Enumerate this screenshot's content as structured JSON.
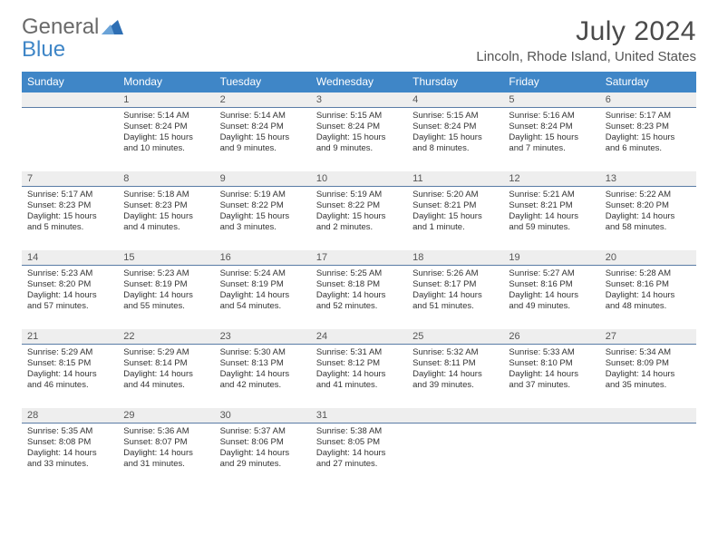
{
  "brand": {
    "part1": "General",
    "part2": "Blue"
  },
  "title": "July 2024",
  "location": "Lincoln, Rhode Island, United States",
  "colors": {
    "header_bg": "#3f86c7",
    "numrow_bg": "#eeeeee",
    "numrow_border": "#5a7ca6",
    "text": "#333333"
  },
  "dayHeaders": [
    "Sunday",
    "Monday",
    "Tuesday",
    "Wednesday",
    "Thursday",
    "Friday",
    "Saturday"
  ],
  "weeks": [
    {
      "nums": [
        "",
        "1",
        "2",
        "3",
        "4",
        "5",
        "6"
      ],
      "cells": [
        {
          "lines": []
        },
        {
          "lines": [
            "Sunrise: 5:14 AM",
            "Sunset: 8:24 PM",
            "Daylight: 15 hours",
            "and 10 minutes."
          ]
        },
        {
          "lines": [
            "Sunrise: 5:14 AM",
            "Sunset: 8:24 PM",
            "Daylight: 15 hours",
            "and 9 minutes."
          ]
        },
        {
          "lines": [
            "Sunrise: 5:15 AM",
            "Sunset: 8:24 PM",
            "Daylight: 15 hours",
            "and 9 minutes."
          ]
        },
        {
          "lines": [
            "Sunrise: 5:15 AM",
            "Sunset: 8:24 PM",
            "Daylight: 15 hours",
            "and 8 minutes."
          ]
        },
        {
          "lines": [
            "Sunrise: 5:16 AM",
            "Sunset: 8:24 PM",
            "Daylight: 15 hours",
            "and 7 minutes."
          ]
        },
        {
          "lines": [
            "Sunrise: 5:17 AM",
            "Sunset: 8:23 PM",
            "Daylight: 15 hours",
            "and 6 minutes."
          ]
        }
      ]
    },
    {
      "nums": [
        "7",
        "8",
        "9",
        "10",
        "11",
        "12",
        "13"
      ],
      "cells": [
        {
          "lines": [
            "Sunrise: 5:17 AM",
            "Sunset: 8:23 PM",
            "Daylight: 15 hours",
            "and 5 minutes."
          ]
        },
        {
          "lines": [
            "Sunrise: 5:18 AM",
            "Sunset: 8:23 PM",
            "Daylight: 15 hours",
            "and 4 minutes."
          ]
        },
        {
          "lines": [
            "Sunrise: 5:19 AM",
            "Sunset: 8:22 PM",
            "Daylight: 15 hours",
            "and 3 minutes."
          ]
        },
        {
          "lines": [
            "Sunrise: 5:19 AM",
            "Sunset: 8:22 PM",
            "Daylight: 15 hours",
            "and 2 minutes."
          ]
        },
        {
          "lines": [
            "Sunrise: 5:20 AM",
            "Sunset: 8:21 PM",
            "Daylight: 15 hours",
            "and 1 minute."
          ]
        },
        {
          "lines": [
            "Sunrise: 5:21 AM",
            "Sunset: 8:21 PM",
            "Daylight: 14 hours",
            "and 59 minutes."
          ]
        },
        {
          "lines": [
            "Sunrise: 5:22 AM",
            "Sunset: 8:20 PM",
            "Daylight: 14 hours",
            "and 58 minutes."
          ]
        }
      ]
    },
    {
      "nums": [
        "14",
        "15",
        "16",
        "17",
        "18",
        "19",
        "20"
      ],
      "cells": [
        {
          "lines": [
            "Sunrise: 5:23 AM",
            "Sunset: 8:20 PM",
            "Daylight: 14 hours",
            "and 57 minutes."
          ]
        },
        {
          "lines": [
            "Sunrise: 5:23 AM",
            "Sunset: 8:19 PM",
            "Daylight: 14 hours",
            "and 55 minutes."
          ]
        },
        {
          "lines": [
            "Sunrise: 5:24 AM",
            "Sunset: 8:19 PM",
            "Daylight: 14 hours",
            "and 54 minutes."
          ]
        },
        {
          "lines": [
            "Sunrise: 5:25 AM",
            "Sunset: 8:18 PM",
            "Daylight: 14 hours",
            "and 52 minutes."
          ]
        },
        {
          "lines": [
            "Sunrise: 5:26 AM",
            "Sunset: 8:17 PM",
            "Daylight: 14 hours",
            "and 51 minutes."
          ]
        },
        {
          "lines": [
            "Sunrise: 5:27 AM",
            "Sunset: 8:16 PM",
            "Daylight: 14 hours",
            "and 49 minutes."
          ]
        },
        {
          "lines": [
            "Sunrise: 5:28 AM",
            "Sunset: 8:16 PM",
            "Daylight: 14 hours",
            "and 48 minutes."
          ]
        }
      ]
    },
    {
      "nums": [
        "21",
        "22",
        "23",
        "24",
        "25",
        "26",
        "27"
      ],
      "cells": [
        {
          "lines": [
            "Sunrise: 5:29 AM",
            "Sunset: 8:15 PM",
            "Daylight: 14 hours",
            "and 46 minutes."
          ]
        },
        {
          "lines": [
            "Sunrise: 5:29 AM",
            "Sunset: 8:14 PM",
            "Daylight: 14 hours",
            "and 44 minutes."
          ]
        },
        {
          "lines": [
            "Sunrise: 5:30 AM",
            "Sunset: 8:13 PM",
            "Daylight: 14 hours",
            "and 42 minutes."
          ]
        },
        {
          "lines": [
            "Sunrise: 5:31 AM",
            "Sunset: 8:12 PM",
            "Daylight: 14 hours",
            "and 41 minutes."
          ]
        },
        {
          "lines": [
            "Sunrise: 5:32 AM",
            "Sunset: 8:11 PM",
            "Daylight: 14 hours",
            "and 39 minutes."
          ]
        },
        {
          "lines": [
            "Sunrise: 5:33 AM",
            "Sunset: 8:10 PM",
            "Daylight: 14 hours",
            "and 37 minutes."
          ]
        },
        {
          "lines": [
            "Sunrise: 5:34 AM",
            "Sunset: 8:09 PM",
            "Daylight: 14 hours",
            "and 35 minutes."
          ]
        }
      ]
    },
    {
      "nums": [
        "28",
        "29",
        "30",
        "31",
        "",
        "",
        ""
      ],
      "cells": [
        {
          "lines": [
            "Sunrise: 5:35 AM",
            "Sunset: 8:08 PM",
            "Daylight: 14 hours",
            "and 33 minutes."
          ]
        },
        {
          "lines": [
            "Sunrise: 5:36 AM",
            "Sunset: 8:07 PM",
            "Daylight: 14 hours",
            "and 31 minutes."
          ]
        },
        {
          "lines": [
            "Sunrise: 5:37 AM",
            "Sunset: 8:06 PM",
            "Daylight: 14 hours",
            "and 29 minutes."
          ]
        },
        {
          "lines": [
            "Sunrise: 5:38 AM",
            "Sunset: 8:05 PM",
            "Daylight: 14 hours",
            "and 27 minutes."
          ]
        },
        {
          "lines": []
        },
        {
          "lines": []
        },
        {
          "lines": []
        }
      ]
    }
  ]
}
